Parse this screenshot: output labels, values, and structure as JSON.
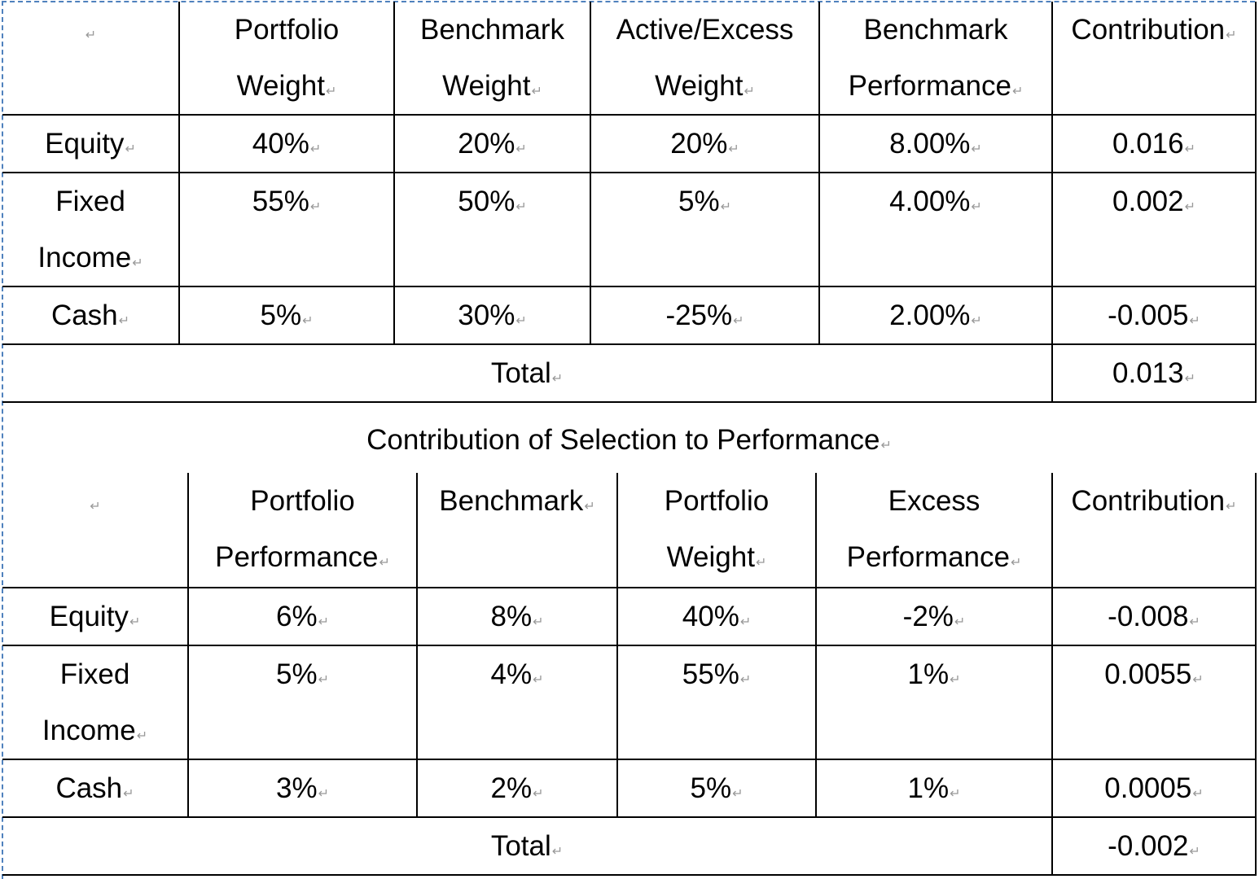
{
  "allocation_table": {
    "headers": [
      [
        ""
      ],
      [
        "Portfolio",
        "Weight"
      ],
      [
        "Benchmark",
        "Weight"
      ],
      [
        "Active/Excess",
        "Weight"
      ],
      [
        "Benchmark",
        "Performance"
      ],
      [
        "Contribution"
      ]
    ],
    "rows": [
      {
        "label": [
          "Equity"
        ],
        "cells": [
          "40%",
          "20%",
          "20%",
          "8.00%",
          "0.016"
        ]
      },
      {
        "label": [
          "Fixed",
          "Income"
        ],
        "cells": [
          "55%",
          "50%",
          "5%",
          "4.00%",
          "0.002"
        ]
      },
      {
        "label": [
          "Cash"
        ],
        "cells": [
          "5%",
          "30%",
          "-25%",
          "2.00%",
          "-0.005"
        ]
      }
    ],
    "total_label": "Total",
    "total_value": "0.013"
  },
  "selection_title": "Contribution of Selection to Performance",
  "selection_table": {
    "headers": [
      [
        ""
      ],
      [
        "Portfolio",
        "Performance"
      ],
      [
        "Benchmark"
      ],
      [
        "Portfolio",
        "Weight"
      ],
      [
        "Excess",
        "Performance"
      ],
      [
        "Contribution"
      ]
    ],
    "rows": [
      {
        "label": [
          "Equity"
        ],
        "cells": [
          "6%",
          "8%",
          "40%",
          "-2%",
          "-0.008"
        ]
      },
      {
        "label": [
          "Fixed",
          "Income"
        ],
        "cells": [
          "5%",
          "4%",
          "55%",
          "1%",
          "0.0055"
        ]
      },
      {
        "label": [
          "Cash"
        ],
        "cells": [
          "3%",
          "2%",
          "5%",
          "1%",
          "0.0005"
        ]
      }
    ],
    "total_label": "Total",
    "total_value": "-0.002"
  },
  "colors": {
    "frame_dash": "#4f81bd",
    "border": "#000000",
    "paragraph_mark": "#999999"
  },
  "icons": {
    "paragraph_mark": "return-mark-icon"
  }
}
